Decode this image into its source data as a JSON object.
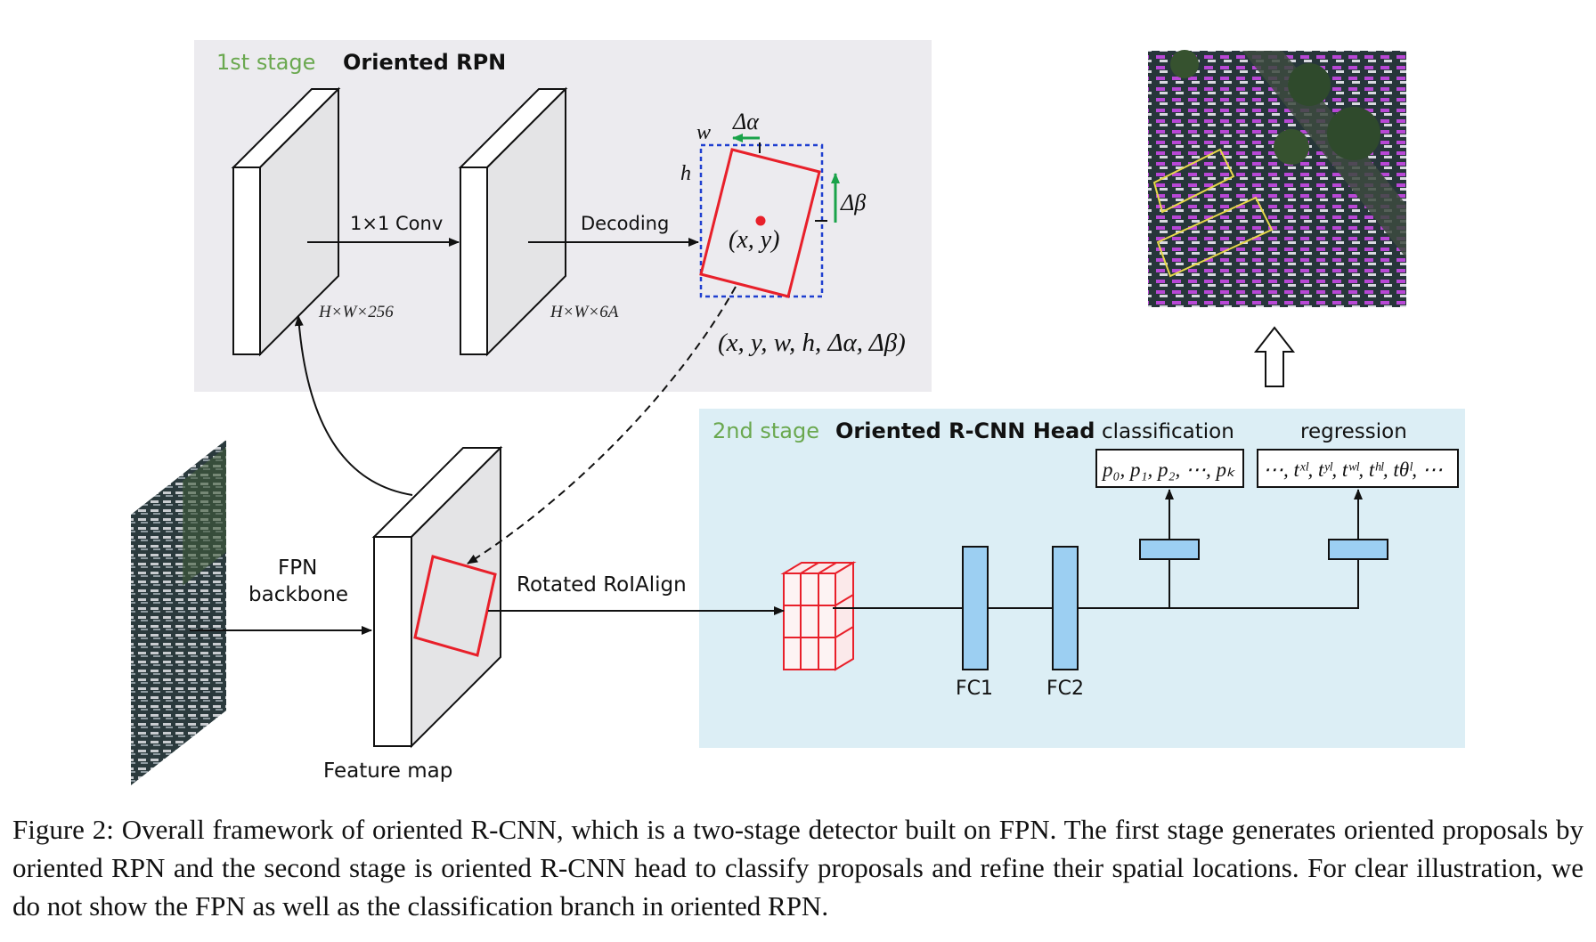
{
  "stage1": {
    "tag": "1st stage",
    "title": "Oriented RPN",
    "conv_label": "1×1 Conv",
    "decoding_label": "Decoding",
    "dim1": "H×W×256",
    "dim2": "H×W×6A",
    "box": {
      "w": "w",
      "h": "h",
      "delta_alpha": "Δα",
      "delta_beta": "Δβ",
      "center": "(x, y)"
    },
    "params": "(x, y, w, h, Δα, Δβ)"
  },
  "stage2": {
    "tag": "2nd stage",
    "title": "Oriented R-CNN Head",
    "classification_label": "classification",
    "regression_label": "regression",
    "classification_output": "p₀, p₁, p₂, ⋯, pₖ",
    "regression_output": "⋯, tˣˡ, tʸˡ, tʷˡ, tʰˡ, tθˡ, ⋯",
    "fc1": "FC1",
    "fc2": "FC2"
  },
  "bottom": {
    "fpn_label_1": "FPN",
    "fpn_label_2": "backbone",
    "roialign_label": "Rotated RoIAlign",
    "feature_map_label": "Feature map"
  },
  "colors": {
    "stage1_bg": "#ecebef",
    "stage2_bg": "#dceef5",
    "stage_tag": "#6aa84f",
    "box_red": "#e8202a",
    "dashed_blue": "#1f3fd0",
    "arrow_green": "#1aa34a",
    "fc_blue": "#9ccff2"
  },
  "caption": "Figure 2: Overall framework of oriented R-CNN, which is a two-stage detector built on FPN. The first stage generates oriented proposals by oriented RPN and the second stage is oriented R-CNN head to classify proposals and refine their spatial locations. For clear illustration, we do not show the FPN as well as the classification branch in oriented RPN."
}
